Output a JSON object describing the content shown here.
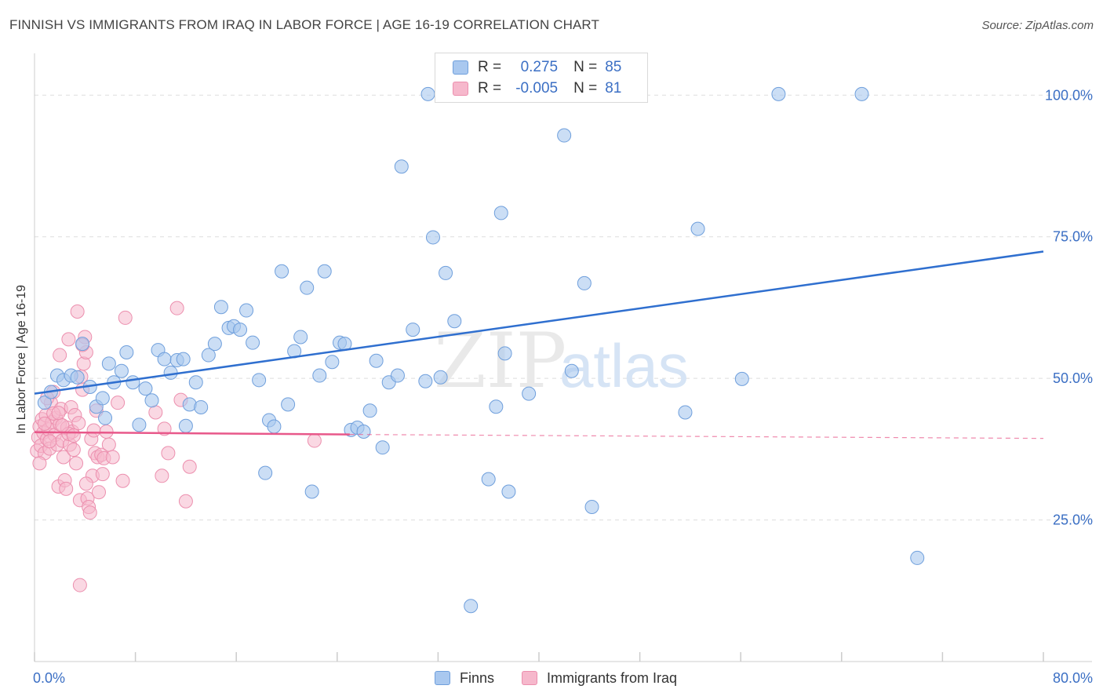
{
  "header": {
    "title": "FINNISH VS IMMIGRANTS FROM IRAQ IN LABOR FORCE | AGE 16-19 CORRELATION CHART",
    "source": "Source: ZipAtlas.com"
  },
  "watermark": {
    "part1": "ZIP",
    "part2": "atlas"
  },
  "legend_top": {
    "rows": [
      {
        "r_label": "R =",
        "r_value": "0.275",
        "n_label": "N =",
        "n_value": "85"
      },
      {
        "r_label": "R =",
        "r_value": "-0.005",
        "n_label": "N =",
        "n_value": "81"
      }
    ]
  },
  "legend_bottom": {
    "finns": "Finns",
    "iraq": "Immigrants from Iraq"
  },
  "colors": {
    "finns_fill": "#a9c8ef",
    "finns_stroke": "#6f9fdc",
    "finns_line": "#2f6fcf",
    "iraq_fill": "#f6b8cc",
    "iraq_stroke": "#ec8fae",
    "iraq_line": "#e8588a",
    "tick_label": "#3b6fc4",
    "grid": "#dddddd"
  },
  "chart_data": {
    "type": "scatter",
    "title": "FINNISH VS IMMIGRANTS FROM IRAQ IN LABOR FORCE | AGE 16-19 CORRELATION CHART",
    "xlabel": "",
    "ylabel": "In Labor Force | Age 16-19",
    "xlim": [
      0,
      80
    ],
    "ylim": [
      0,
      106
    ],
    "x_tick_labels": [
      "0.0%",
      "80.0%"
    ],
    "y_ticks": [
      25,
      50,
      75,
      100
    ],
    "y_tick_labels": [
      "25.0%",
      "50.0%",
      "75.0%",
      "100.0%"
    ],
    "grid": true,
    "legend_placement": "top-center",
    "series": [
      {
        "name": "Finns",
        "r": 0.275,
        "n": 85,
        "trend": {
          "x": [
            0,
            80
          ],
          "y": [
            47.3,
            72.4
          ],
          "style": "solid"
        },
        "points": [
          [
            0.8,
            45.7
          ],
          [
            1.3,
            47.6
          ],
          [
            1.8,
            50.5
          ],
          [
            2.3,
            49.7
          ],
          [
            2.9,
            50.5
          ],
          [
            3.4,
            50.2
          ],
          [
            3.8,
            56.1
          ],
          [
            4.4,
            48.5
          ],
          [
            4.9,
            45.0
          ],
          [
            5.4,
            46.5
          ],
          [
            5.9,
            52.6
          ],
          [
            6.3,
            49.3
          ],
          [
            6.9,
            51.3
          ],
          [
            7.3,
            54.6
          ],
          [
            7.8,
            49.3
          ],
          [
            8.3,
            41.8
          ],
          [
            8.8,
            48.2
          ],
          [
            9.3,
            46.1
          ],
          [
            9.8,
            55.0
          ],
          [
            10.3,
            53.4
          ],
          [
            10.8,
            51.0
          ],
          [
            11.3,
            53.2
          ],
          [
            11.8,
            53.4
          ],
          [
            12.3,
            45.4
          ],
          [
            12.8,
            49.3
          ],
          [
            13.2,
            44.9
          ],
          [
            13.8,
            54.1
          ],
          [
            14.3,
            56.1
          ],
          [
            14.8,
            62.6
          ],
          [
            15.4,
            58.9
          ],
          [
            15.8,
            59.2
          ],
          [
            16.3,
            58.6
          ],
          [
            16.8,
            62.0
          ],
          [
            17.3,
            56.3
          ],
          [
            17.8,
            49.7
          ],
          [
            18.6,
            42.6
          ],
          [
            19.0,
            41.5
          ],
          [
            18.3,
            33.3
          ],
          [
            19.6,
            68.9
          ],
          [
            20.1,
            45.4
          ],
          [
            20.6,
            54.8
          ],
          [
            21.1,
            57.3
          ],
          [
            22.0,
            30.0
          ],
          [
            22.6,
            50.5
          ],
          [
            23.0,
            68.9
          ],
          [
            23.6,
            52.9
          ],
          [
            24.2,
            56.3
          ],
          [
            24.6,
            56.1
          ],
          [
            25.1,
            40.9
          ],
          [
            25.6,
            41.3
          ],
          [
            26.1,
            40.6
          ],
          [
            26.6,
            44.3
          ],
          [
            27.1,
            53.1
          ],
          [
            27.6,
            37.8
          ],
          [
            28.1,
            49.3
          ],
          [
            28.8,
            50.5
          ],
          [
            29.1,
            87.4
          ],
          [
            30.0,
            58.6
          ],
          [
            31.0,
            49.5
          ],
          [
            31.6,
            74.9
          ],
          [
            32.2,
            50.2
          ],
          [
            32.6,
            68.6
          ],
          [
            33.3,
            60.1
          ],
          [
            34.6,
            9.8
          ],
          [
            36.0,
            32.2
          ],
          [
            36.6,
            45.0
          ],
          [
            37.0,
            79.2
          ],
          [
            37.3,
            54.4
          ],
          [
            37.6,
            30.0
          ],
          [
            39.2,
            47.3
          ],
          [
            42.0,
            92.9
          ],
          [
            42.6,
            51.3
          ],
          [
            43.6,
            66.8
          ],
          [
            44.2,
            27.3
          ],
          [
            51.6,
            44.0
          ],
          [
            52.6,
            76.4
          ],
          [
            56.1,
            49.9
          ],
          [
            31.2,
            100.2
          ],
          [
            35.6,
            100.2
          ],
          [
            59.0,
            100.2
          ],
          [
            65.6,
            100.2
          ],
          [
            70.0,
            18.3
          ],
          [
            21.6,
            66.0
          ],
          [
            12.0,
            41.6
          ],
          [
            5.6,
            43.0
          ]
        ]
      },
      {
        "name": "Immigrants from Iraq",
        "r": -0.005,
        "n": 81,
        "trend_solid": {
          "x": [
            0,
            25
          ],
          "y": [
            40.5,
            40.1
          ]
        },
        "trend_dashed": {
          "x": [
            25,
            80
          ],
          "y": [
            40.1,
            39.4
          ]
        },
        "points": [
          [
            0.2,
            37.2
          ],
          [
            0.3,
            39.6
          ],
          [
            0.4,
            41.5
          ],
          [
            0.5,
            38.1
          ],
          [
            0.6,
            42.8
          ],
          [
            0.7,
            40.4
          ],
          [
            0.8,
            36.8
          ],
          [
            0.9,
            43.5
          ],
          [
            1.0,
            39.3
          ],
          [
            1.1,
            41.0
          ],
          [
            1.2,
            37.6
          ],
          [
            1.3,
            45.7
          ],
          [
            1.4,
            42.3
          ],
          [
            1.5,
            47.6
          ],
          [
            1.6,
            40.0
          ],
          [
            1.7,
            43.0
          ],
          [
            1.8,
            38.3
          ],
          [
            1.9,
            30.9
          ],
          [
            2.0,
            41.9
          ],
          [
            2.1,
            44.6
          ],
          [
            2.2,
            39.0
          ],
          [
            2.3,
            36.1
          ],
          [
            2.4,
            32.0
          ],
          [
            2.5,
            30.5
          ],
          [
            2.6,
            41.3
          ],
          [
            2.7,
            56.9
          ],
          [
            2.8,
            38.3
          ],
          [
            2.9,
            44.9
          ],
          [
            3.0,
            40.6
          ],
          [
            3.1,
            37.4
          ],
          [
            3.2,
            43.5
          ],
          [
            3.3,
            35.0
          ],
          [
            3.4,
            61.8
          ],
          [
            3.5,
            42.1
          ],
          [
            3.6,
            28.5
          ],
          [
            3.7,
            50.3
          ],
          [
            3.8,
            48.0
          ],
          [
            3.9,
            52.6
          ],
          [
            4.0,
            57.3
          ],
          [
            4.1,
            54.6
          ],
          [
            4.2,
            28.8
          ],
          [
            4.3,
            27.3
          ],
          [
            4.4,
            26.3
          ],
          [
            4.5,
            39.3
          ],
          [
            4.6,
            32.8
          ],
          [
            4.7,
            40.8
          ],
          [
            4.8,
            36.8
          ],
          [
            4.9,
            44.3
          ],
          [
            5.0,
            36.1
          ],
          [
            5.1,
            29.9
          ],
          [
            5.3,
            36.5
          ],
          [
            5.5,
            35.9
          ],
          [
            5.7,
            40.6
          ],
          [
            5.9,
            38.3
          ],
          [
            6.2,
            36.1
          ],
          [
            6.6,
            45.7
          ],
          [
            7.0,
            31.9
          ],
          [
            7.2,
            60.7
          ],
          [
            3.6,
            13.5
          ],
          [
            9.6,
            44.0
          ],
          [
            10.1,
            32.8
          ],
          [
            10.3,
            41.1
          ],
          [
            10.6,
            36.8
          ],
          [
            11.3,
            62.4
          ],
          [
            11.6,
            46.2
          ],
          [
            12.0,
            28.3
          ],
          [
            12.3,
            34.4
          ],
          [
            22.2,
            39.0
          ],
          [
            2.0,
            54.1
          ],
          [
            3.8,
            55.9
          ],
          [
            1.5,
            43.8
          ],
          [
            1.0,
            46.5
          ],
          [
            0.4,
            35.0
          ],
          [
            2.7,
            40.2
          ],
          [
            1.2,
            38.9
          ],
          [
            3.1,
            39.9
          ],
          [
            2.2,
            41.7
          ],
          [
            0.8,
            42.0
          ],
          [
            1.9,
            43.9
          ],
          [
            4.1,
            31.4
          ],
          [
            5.4,
            33.1
          ]
        ]
      }
    ]
  }
}
